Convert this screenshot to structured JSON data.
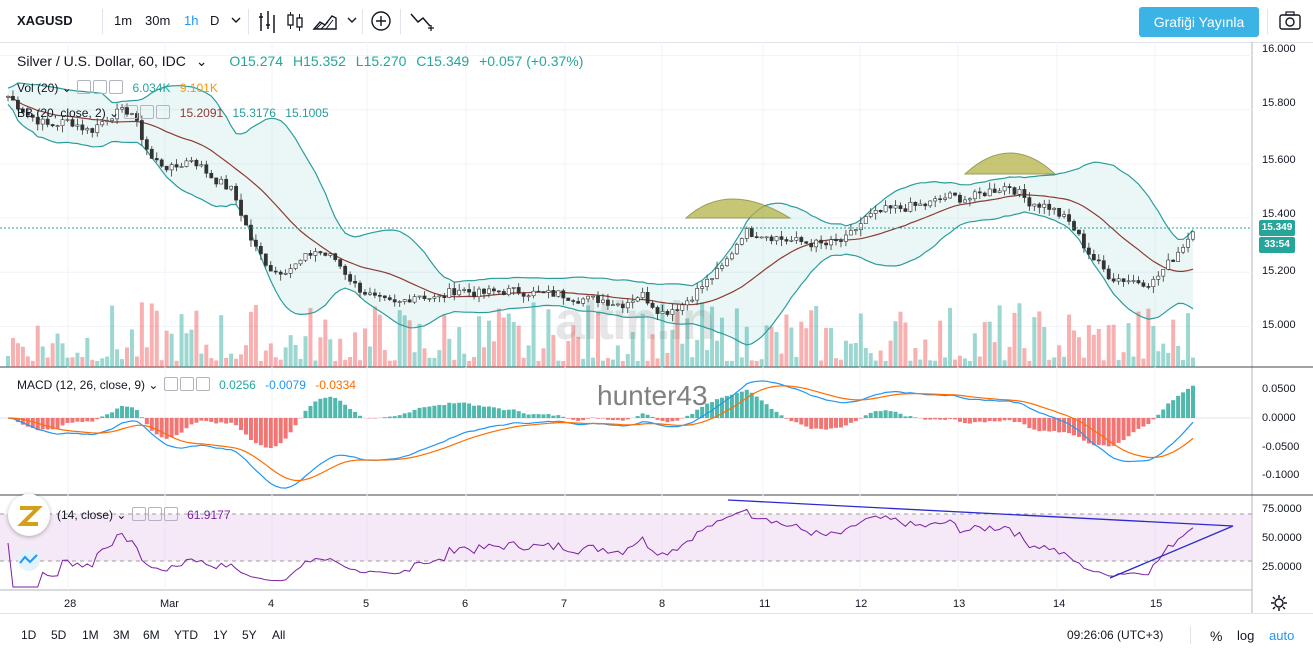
{
  "toolbar": {
    "symbol": "XAGUSD",
    "intervals": [
      "1m",
      "30m",
      "1h",
      "D"
    ],
    "active_interval": "1h",
    "publish_label": "Grafiği Yayınla",
    "icons": [
      "chevron-down-icon",
      "indicators-icon",
      "candles-icon",
      "area-icon",
      "add-icon",
      "compare-icon",
      "camera-icon"
    ]
  },
  "legend": {
    "title": "Silver / U.S. Dollar, 60, IDC",
    "open": "O15.274",
    "high": "H15.352",
    "low": "L15.270",
    "close": "C15.349",
    "change": "+0.057 (+0.37%)",
    "vol_label": "Vol (20)",
    "vol_v1": "6.034K",
    "vol_v2": "9.101K",
    "bb_label": "BB (20, close, 2)",
    "bb_v1": "15.2091",
    "bb_v2": "15.3176",
    "bb_v3": "15.1005",
    "macd_label": "MACD (12, 26, close, 9)",
    "macd_v1": "0.0256",
    "macd_v2": "-0.0079",
    "macd_v3": "-0.0334",
    "rsi_label": "(14, close)",
    "rsi_v": "61.9177"
  },
  "price_axis": [
    "16.000",
    "15.800",
    "15.600",
    "15.400",
    "15.200",
    "15.000"
  ],
  "macd_axis": [
    "0.0500",
    "0.0000",
    "-0.0500",
    "-0.1000"
  ],
  "rsi_axis": [
    "75.0000",
    "50.0000",
    "25.0000"
  ],
  "last_price": "15.349",
  "countdown": "33:54",
  "time_axis": [
    "28",
    "Mar",
    "4",
    "5",
    "6",
    "7",
    "8",
    "11",
    "12",
    "13",
    "14",
    "15"
  ],
  "range_buttons": [
    "1D",
    "5D",
    "1M",
    "3M",
    "6M",
    "YTD",
    "1Y",
    "5Y",
    "All"
  ],
  "clock": "09:26:06 (UTC+3)",
  "scale_options": [
    "%",
    "log",
    "auto"
  ],
  "watermark_user": "hunter43",
  "watermark_brand": "altin.in",
  "colors": {
    "up": "#26a69a",
    "down": "#ef5350",
    "bb": "#2a9d9b",
    "accent": "#3bb3e4",
    "macd": "#2196f3",
    "signal": "#ff6d00",
    "rsi": "#7b1fa2"
  },
  "chart_data": {
    "type": "candlestick",
    "ylim": [
      14.85,
      16.05
    ],
    "key_prices": {
      "open": 15.274,
      "high": 15.352,
      "low": 15.27,
      "close": 15.349
    },
    "approx_closes": [
      15.85,
      15.78,
      15.74,
      15.76,
      15.72,
      15.78,
      15.8,
      15.62,
      15.58,
      15.62,
      15.55,
      15.5,
      15.3,
      15.2,
      15.22,
      15.28,
      15.25,
      15.15,
      15.1,
      15.08,
      15.12,
      15.1,
      15.14,
      15.12,
      15.13,
      15.13,
      15.12,
      15.12,
      15.1,
      15.1,
      15.08,
      15.12,
      15.05,
      15.08,
      15.15,
      15.22,
      15.35,
      15.34,
      15.32,
      15.31,
      15.3,
      15.32,
      15.4,
      15.43,
      15.44,
      15.45,
      15.48,
      15.47,
      15.5,
      15.52,
      15.46,
      15.44,
      15.38,
      15.26,
      15.18,
      15.17,
      15.16,
      15.25,
      15.35
    ]
  }
}
